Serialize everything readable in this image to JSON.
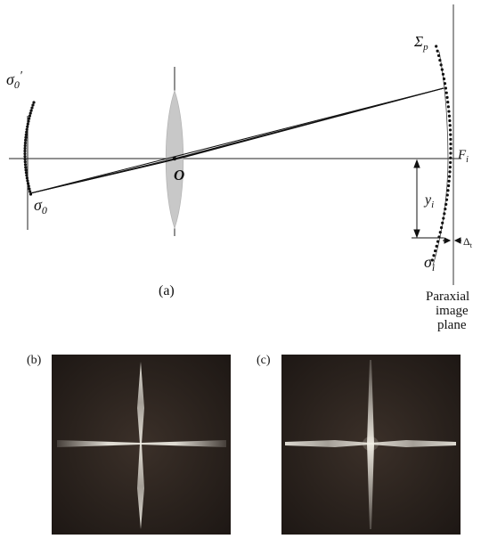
{
  "labels": {
    "sigma0_prime_main": "σ",
    "sigma0_prime_sub": "0",
    "sigma0_prime_mark": "′",
    "sigma0_main": "σ",
    "sigma0_sub": "0",
    "center": "O",
    "sigma_p_main": "Σ",
    "sigma_p_sub": "p",
    "focal_main": "F",
    "focal_sub": "i",
    "height_main": "y",
    "height_sub": "i",
    "delta_main": "Δ",
    "delta_sub": "t",
    "sigma_i_main": "σ",
    "sigma_i_sub": "i",
    "paraxial_line1": "Paraxial",
    "paraxial_line2": "image",
    "paraxial_line3": "plane",
    "panel_a": "(a)",
    "panel_b": "(b)",
    "panel_c": "(c)"
  },
  "colors": {
    "ink": "#111111",
    "lens_fill": "#c8c8c8",
    "photo_bg": "#2a221d",
    "streak": "#f2efe6"
  }
}
